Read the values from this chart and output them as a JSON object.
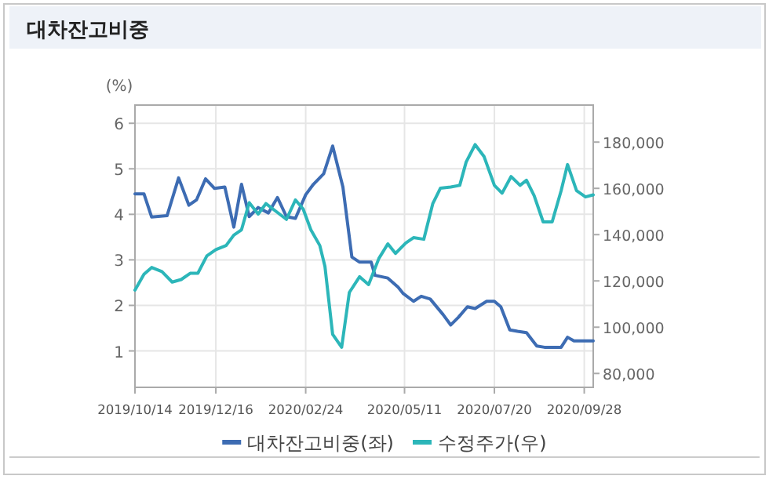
{
  "chart_data": {
    "type": "line",
    "title": "대차잔고비중",
    "ylabel": "(%)",
    "xlim": [
      "2019-10-14",
      "2020-10-05"
    ],
    "xticks": [
      {
        "value": "2019-10-14",
        "label": "2019/10/14"
      },
      {
        "value": "2019-12-16",
        "label": "2019/12/16"
      },
      {
        "value": "2020-02-24",
        "label": "2020/02/24"
      },
      {
        "value": "2020-05-11",
        "label": "2020/05/11"
      },
      {
        "value": "2020-07-20",
        "label": "2020/07/20"
      },
      {
        "value": "2020-09-28",
        "label": "2020/09/28"
      }
    ],
    "ylim": [
      0.2,
      6.4
    ],
    "yticks": [
      1,
      2,
      3,
      4,
      5,
      6
    ],
    "y2lim": [
      74000,
      196000
    ],
    "y2ticks": [
      {
        "value": 80000,
        "label": "80,000"
      },
      {
        "value": 100000,
        "label": "100,000"
      },
      {
        "value": 120000,
        "label": "120,000"
      },
      {
        "value": 140000,
        "label": "140,000"
      },
      {
        "value": 160000,
        "label": "160,000"
      },
      {
        "value": 180000,
        "label": "180,000"
      }
    ],
    "grid": true,
    "legend": "bottom",
    "series": [
      {
        "name": "대차잔고비중(좌)",
        "color": "#3d6cb3",
        "x": [
          "2019-10-14",
          "2019-10-21",
          "2019-10-27",
          "2019-11-08",
          "2019-11-17",
          "2019-11-25",
          "2019-12-01",
          "2019-12-08",
          "2019-12-15",
          "2019-12-23",
          "2019-12-30",
          "2020-01-05",
          "2020-01-11",
          "2020-01-18",
          "2020-01-26",
          "2020-02-02",
          "2020-02-09",
          "2020-02-16",
          "2020-02-24",
          "2020-03-01",
          "2020-03-09",
          "2020-03-16",
          "2020-03-24",
          "2020-03-31",
          "2020-04-06",
          "2020-04-15",
          "2020-04-18",
          "2020-04-28",
          "2020-05-06",
          "2020-05-10",
          "2020-05-18",
          "2020-05-24",
          "2020-05-31",
          "2020-06-10",
          "2020-06-16",
          "2020-06-22",
          "2020-06-29",
          "2020-07-05",
          "2020-07-14",
          "2020-07-20",
          "2020-07-25",
          "2020-08-01",
          "2020-08-07",
          "2020-08-14",
          "2020-08-22",
          "2020-08-28",
          "2020-09-10",
          "2020-09-15",
          "2020-09-20",
          "2020-10-05"
        ],
        "values": [
          4.45,
          4.45,
          3.94,
          3.97,
          4.8,
          4.2,
          4.32,
          4.78,
          4.57,
          4.6,
          3.72,
          4.66,
          3.95,
          4.15,
          4.03,
          4.37,
          3.95,
          3.91,
          4.43,
          4.66,
          4.89,
          5.5,
          4.6,
          3.06,
          2.95,
          2.95,
          2.66,
          2.6,
          2.4,
          2.26,
          2.09,
          2.2,
          2.14,
          1.8,
          1.57,
          1.74,
          1.97,
          1.93,
          2.09,
          2.09,
          1.97,
          1.46,
          1.43,
          1.4,
          1.11,
          1.08,
          1.08,
          1.3,
          1.22,
          1.22
        ]
      },
      {
        "name": "수정주가(우)",
        "color": "#2cb6b9",
        "axis": "y2",
        "x": [
          "2019-10-14",
          "2019-10-21",
          "2019-10-27",
          "2019-11-04",
          "2019-11-12",
          "2019-11-19",
          "2019-11-26",
          "2019-12-02",
          "2019-12-09",
          "2019-12-16",
          "2019-12-24",
          "2019-12-30",
          "2020-01-05",
          "2020-01-11",
          "2020-01-18",
          "2020-01-24",
          "2020-02-01",
          "2020-02-09",
          "2020-02-16",
          "2020-02-22",
          "2020-02-28",
          "2020-03-06",
          "2020-03-10",
          "2020-03-16",
          "2020-03-23",
          "2020-03-29",
          "2020-04-06",
          "2020-04-13",
          "2020-04-21",
          "2020-04-28",
          "2020-05-04",
          "2020-05-12",
          "2020-05-18",
          "2020-05-26",
          "2020-06-02",
          "2020-06-08",
          "2020-06-16",
          "2020-06-23",
          "2020-06-28",
          "2020-07-05",
          "2020-07-12",
          "2020-07-20",
          "2020-07-26",
          "2020-08-02",
          "2020-08-09",
          "2020-08-14",
          "2020-08-20",
          "2020-08-27",
          "2020-09-03",
          "2020-09-10",
          "2020-09-15",
          "2020-09-22",
          "2020-09-29",
          "2020-10-05"
        ],
        "values": [
          116000,
          122900,
          125800,
          124000,
          119500,
          120600,
          123300,
          123300,
          130800,
          133500,
          135300,
          139800,
          142100,
          153800,
          148900,
          153400,
          150000,
          146600,
          155000,
          151100,
          142100,
          135300,
          126300,
          96900,
          91300,
          115000,
          121800,
          118400,
          129700,
          136000,
          131900,
          136400,
          138700,
          138000,
          153400,
          160100,
          160600,
          161300,
          171400,
          178900,
          173700,
          161300,
          157900,
          165100,
          161300,
          163500,
          156800,
          145500,
          145500,
          159000,
          170300,
          159000,
          156300,
          157200
        ]
      }
    ]
  }
}
